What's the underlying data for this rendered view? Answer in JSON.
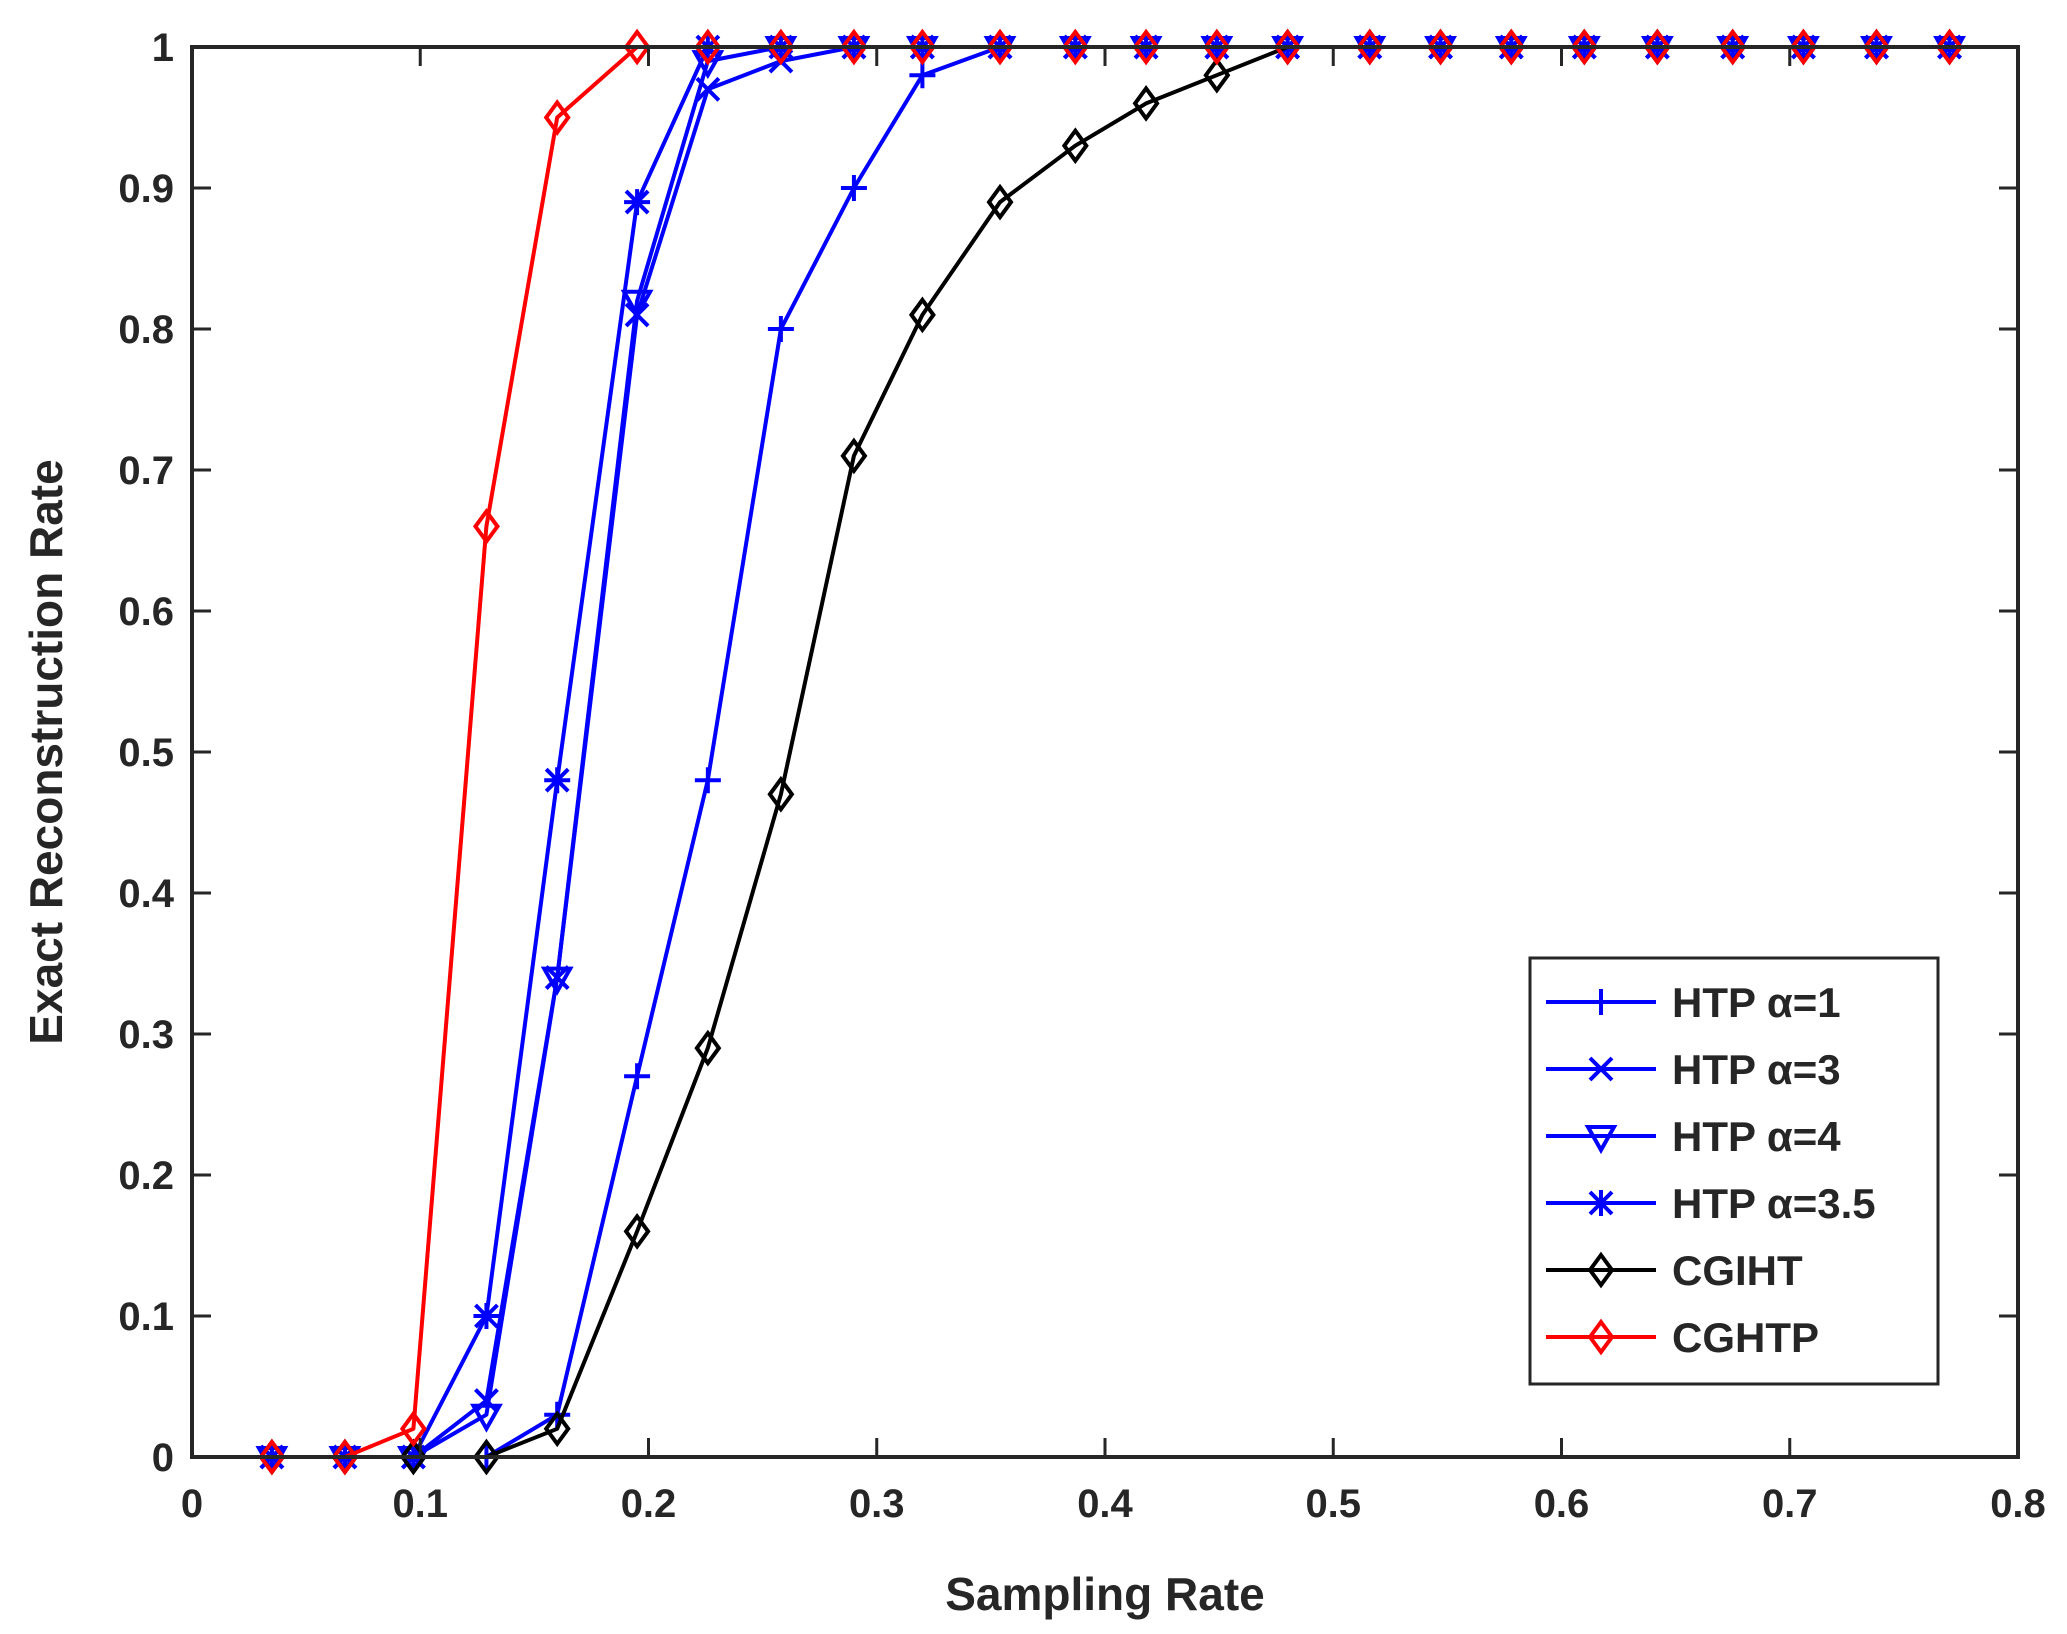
{
  "chart_data": {
    "type": "line",
    "title": "",
    "xlabel": "Sampling Rate",
    "ylabel": "Exact Reconstruction Rate",
    "xlim": [
      0,
      0.8
    ],
    "ylim": [
      0,
      1
    ],
    "grid": false,
    "legend_position": "bottom-right",
    "x_ticks": [
      0,
      0.1,
      0.2,
      0.3,
      0.4,
      0.5,
      0.6,
      0.7,
      0.8
    ],
    "x_tick_labels": [
      "0",
      "0.1",
      "0.2",
      "0.3",
      "0.4",
      "0.5",
      "0.6",
      "0.7",
      "0.8"
    ],
    "y_ticks": [
      0,
      0.1,
      0.2,
      0.3,
      0.4,
      0.5,
      0.6,
      0.7,
      0.8,
      0.9,
      1
    ],
    "y_tick_labels": [
      "0",
      "0.1",
      "0.2",
      "0.3",
      "0.4",
      "0.5",
      "0.6",
      "0.7",
      "0.8",
      "0.9",
      "1"
    ],
    "x": [
      0.035,
      0.067,
      0.097,
      0.129,
      0.16,
      0.195,
      0.226,
      0.258,
      0.29,
      0.32,
      0.354,
      0.387,
      0.418,
      0.449,
      0.48,
      0.516,
      0.547,
      0.578,
      0.61,
      0.642,
      0.675,
      0.706,
      0.738,
      0.77
    ],
    "series": [
      {
        "name": "HTP α=1",
        "color": "#0000ff",
        "marker": "plus",
        "values": [
          0,
          0,
          0,
          0,
          0.03,
          0.27,
          0.48,
          0.8,
          0.9,
          0.98,
          1,
          1,
          1,
          1,
          1,
          1,
          1,
          1,
          1,
          1,
          1,
          1,
          1,
          1
        ]
      },
      {
        "name": "HTP α=3",
        "color": "#0000ff",
        "marker": "cross",
        "values": [
          0,
          0,
          0,
          0.04,
          0.34,
          0.81,
          0.97,
          0.99,
          1,
          1,
          1,
          1,
          1,
          1,
          1,
          1,
          1,
          1,
          1,
          1,
          1,
          1,
          1,
          1
        ]
      },
      {
        "name": "HTP α=4",
        "color": "#0000ff",
        "marker": "triangle-down",
        "values": [
          0,
          0,
          0,
          0.03,
          0.34,
          0.82,
          0.99,
          1,
          1,
          1,
          1,
          1,
          1,
          1,
          1,
          1,
          1,
          1,
          1,
          1,
          1,
          1,
          1,
          1
        ]
      },
      {
        "name": "HTP α=3.5",
        "color": "#0000ff",
        "marker": "asterisk",
        "values": [
          0,
          0,
          0,
          0.1,
          0.48,
          0.89,
          1,
          1,
          1,
          1,
          1,
          1,
          1,
          1,
          1,
          1,
          1,
          1,
          1,
          1,
          1,
          1,
          1,
          1
        ]
      },
      {
        "name": "CGIHT",
        "color": "#000000",
        "marker": "diamond",
        "values": [
          0,
          0,
          0,
          0,
          0.02,
          0.16,
          0.29,
          0.47,
          0.71,
          0.81,
          0.89,
          0.93,
          0.96,
          0.98,
          1,
          1,
          1,
          1,
          1,
          1,
          1,
          1,
          1,
          1
        ]
      },
      {
        "name": "CGHTP",
        "color": "#ff0000",
        "marker": "diamond",
        "values": [
          0,
          0,
          0.02,
          0.66,
          0.95,
          1,
          1,
          1,
          1,
          1,
          1,
          1,
          1,
          1,
          1,
          1,
          1,
          1,
          1,
          1,
          1,
          1,
          1,
          1
        ]
      }
    ]
  }
}
